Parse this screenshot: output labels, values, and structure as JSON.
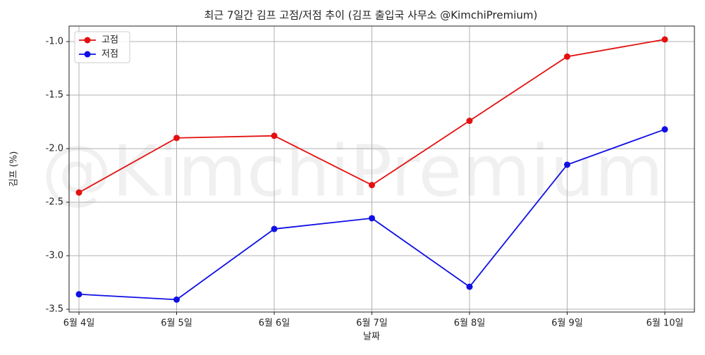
{
  "chart_data": {
    "type": "line",
    "title": "최근 7일간 김프 고점/저점 추이 (김프 출입국 사무소 @KimchiPremium)",
    "watermark": "@KimchiPremium",
    "xlabel": "날짜",
    "ylabel": "김프 (%)",
    "categories": [
      "6월 4일",
      "6월 5일",
      "6월 6일",
      "6월 7일",
      "6월 8일",
      "6월 9일",
      "6월 10일"
    ],
    "series": [
      {
        "name": "고점",
        "color": "#e41010",
        "values": [
          -2.41,
          -1.9,
          -1.88,
          -2.34,
          -1.74,
          -1.14,
          -0.98
        ]
      },
      {
        "name": "저점",
        "color": "#1010e4",
        "values": [
          -3.36,
          -3.41,
          -2.75,
          -2.65,
          -3.29,
          -2.15,
          -1.82
        ]
      }
    ],
    "ylim": [
      -3.526,
      -0.855
    ],
    "yticks": [
      {
        "value": -1,
        "label": "-1.0"
      },
      -1.5,
      {
        "value": -2,
        "label": "-2.0"
      },
      -2.5,
      {
        "value": -3,
        "label": "-3.0"
      },
      -3.5
    ],
    "grid": true,
    "legend": "upper left"
  }
}
